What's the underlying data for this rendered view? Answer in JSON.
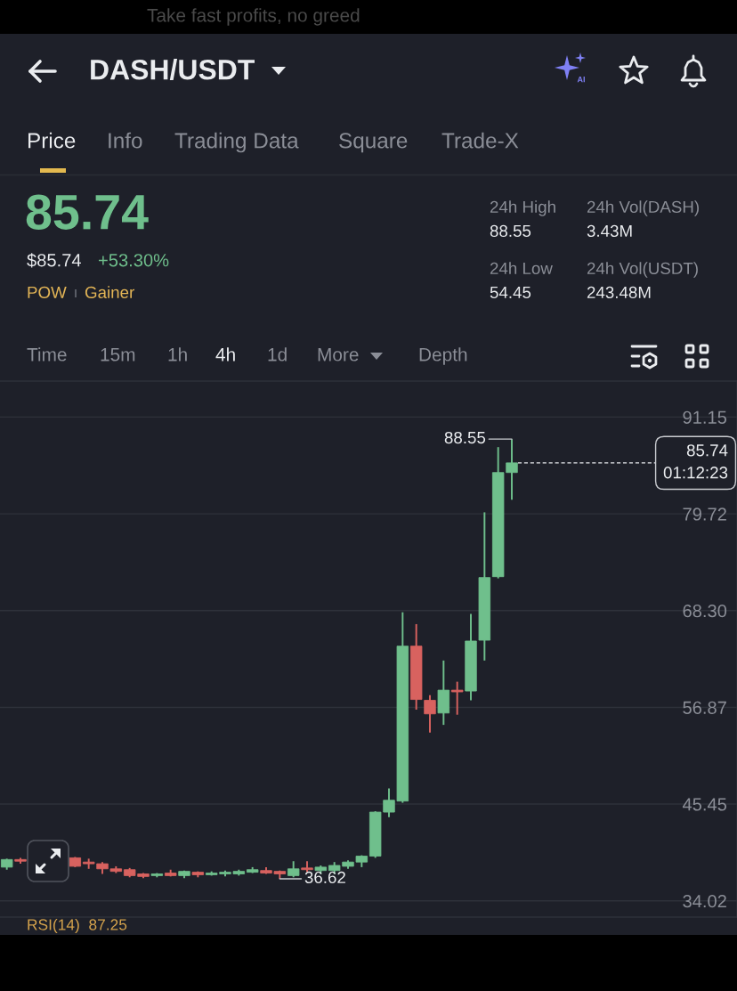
{
  "chart_data": {
    "type": "candlestick",
    "title": "DASH/USDT",
    "categories": [
      null,
      null,
      null,
      null,
      null,
      null,
      null,
      null,
      null,
      null,
      null,
      null,
      null,
      null,
      null,
      null,
      null,
      null,
      null,
      null,
      null,
      null,
      null,
      null,
      null,
      null,
      null,
      null,
      null,
      null,
      null,
      null,
      null,
      null,
      null,
      null,
      null,
      null,
      null,
      null,
      null,
      null,
      null,
      null,
      null,
      null,
      null,
      null,
      null,
      null,
      null,
      null,
      null,
      null
    ],
    "ohlc": [
      [
        38.0,
        39.0,
        37.7,
        38.9
      ],
      [
        38.9,
        39.1,
        38.4,
        38.7
      ],
      null,
      null,
      null,
      [
        39.1,
        39.2,
        38.0,
        38.1
      ],
      [
        38.6,
        39.0,
        37.8,
        38.4
      ],
      [
        38.4,
        38.6,
        37.2,
        37.8
      ],
      [
        37.8,
        38.1,
        37.3,
        37.5
      ],
      [
        37.7,
        37.9,
        36.8,
        37.0
      ],
      [
        37.2,
        37.3,
        36.7,
        36.9
      ],
      [
        37.0,
        37.3,
        36.8,
        37.2
      ],
      [
        37.3,
        37.7,
        36.9,
        37.0
      ],
      [
        37.0,
        37.6,
        36.7,
        37.5
      ],
      [
        37.4,
        37.5,
        36.8,
        37.1
      ],
      [
        37.1,
        37.5,
        37.0,
        37.3
      ],
      [
        37.2,
        37.6,
        36.9,
        37.4
      ],
      [
        37.2,
        37.7,
        37.0,
        37.5
      ],
      [
        37.4,
        38.0,
        37.3,
        37.7
      ],
      [
        37.6,
        38.0,
        37.2,
        37.3
      ],
      [
        37.5,
        37.6,
        36.62,
        37.2
      ],
      [
        37.0,
        38.7,
        36.8,
        37.8
      ],
      [
        37.9,
        38.7,
        37.4,
        37.7
      ],
      [
        37.6,
        38.2,
        37.2,
        38.0
      ],
      [
        37.6,
        38.6,
        37.2,
        38.2
      ],
      [
        38.1,
        38.8,
        37.8,
        38.6
      ],
      [
        38.6,
        39.4,
        38.0,
        39.3
      ],
      [
        39.3,
        44.6,
        39.1,
        44.5
      ],
      [
        44.5,
        47.3,
        43.9,
        45.9
      ],
      [
        45.8,
        68.1,
        45.6,
        64.1
      ],
      [
        64.1,
        66.7,
        56.6,
        57.8
      ],
      [
        57.7,
        58.3,
        53.9,
        56.1
      ],
      [
        56.2,
        62.4,
        54.8,
        58.9
      ],
      [
        58.9,
        59.9,
        56.0,
        58.7
      ],
      [
        58.8,
        67.9,
        57.7,
        64.7
      ],
      [
        64.8,
        79.9,
        62.4,
        72.2
      ],
      [
        72.3,
        87.6,
        72.1,
        84.6
      ],
      [
        84.6,
        88.55,
        81.4,
        85.74
      ],
      null,
      null,
      null,
      null,
      null,
      null,
      null,
      null,
      null,
      null,
      null,
      null,
      null,
      null,
      null,
      null
    ],
    "colors": [
      "#6fbf8c",
      "#d8625f",
      null,
      null,
      null,
      "#d8625f",
      "#d8625f",
      "#d8625f",
      "#d8625f",
      "#d8625f",
      "#d8625f",
      "#6fbf8c",
      "#d8625f",
      "#6fbf8c",
      "#d8625f",
      "#6fbf8c",
      "#6fbf8c",
      "#6fbf8c",
      "#6fbf8c",
      "#d8625f",
      "#d8625f",
      "#6fbf8c",
      "#d8625f",
      "#6fbf8c",
      "#6fbf8c",
      "#6fbf8c",
      "#6fbf8c",
      "#6fbf8c",
      "#6fbf8c",
      "#6fbf8c",
      "#d8625f",
      "#d8625f",
      "#6fbf8c",
      "#d8625f",
      "#6fbf8c",
      "#6fbf8c",
      "#6fbf8c",
      "#6fbf8c",
      null,
      null,
      null,
      null,
      null,
      null,
      null,
      null,
      null,
      null,
      null,
      null,
      null,
      null,
      null,
      null
    ],
    "ylim": [
      32.1,
      95.4
    ],
    "yticks": [
      34.02,
      45.45,
      56.87,
      {
        "value": 68.3,
        "label": "68.30"
      },
      79.72,
      91.15
    ],
    "grid": "y",
    "tick_labels": "y",
    "ref_lines": [
      {
        "axis": "y",
        "value": 85.74,
        "label": "85.74\n01:12:23",
        "color": "#eaecef",
        "line_style": "dashed"
      }
    ],
    "annotations": [
      "Take fast profits, no greed",
      "AI",
      "Price",
      "Info",
      "Trading Data",
      "Square",
      "Trade-X",
      "85.74",
      "$85.74",
      "+53.30%",
      "POW",
      "Gainer",
      "24h High",
      "88.55",
      "24h Vol(DASH)",
      "3.43M",
      "24h Low",
      "54.45",
      "24h Vol(USDT)",
      "243.48M",
      "Time",
      "15m",
      "1h",
      "4h",
      "1d",
      "More",
      "Depth",
      "RSI(14)  87.25",
      "88.55",
      "36.62"
    ]
  }
}
